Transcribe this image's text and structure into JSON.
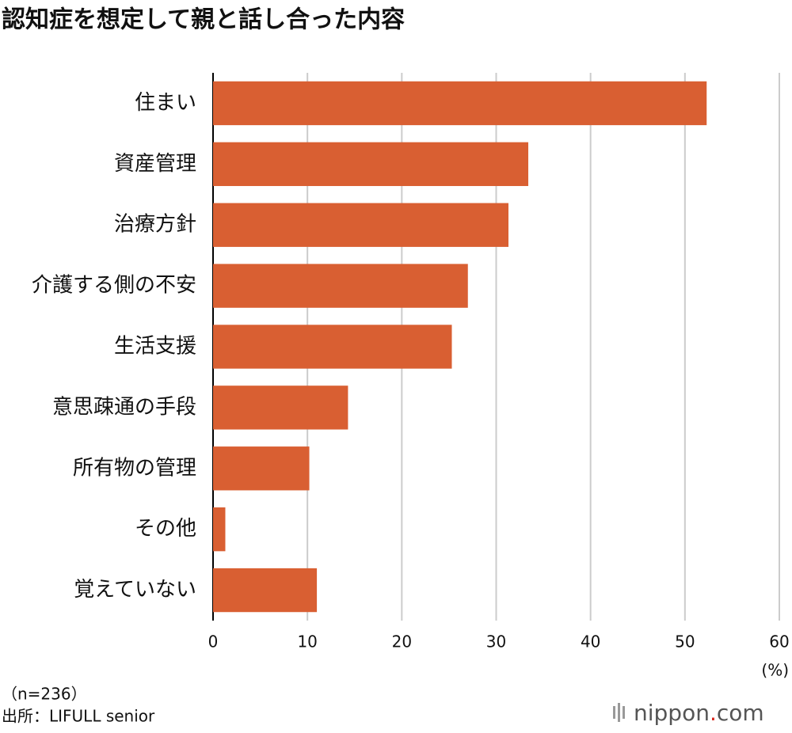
{
  "chart_data": {
    "type": "bar",
    "orientation": "horizontal",
    "title": "認知症を想定して親と話し合った内容",
    "categories": [
      "住まい",
      "資産管理",
      "治療方針",
      "介護する側の不安",
      "生活支援",
      "意思疎通の手段",
      "所有物の管理",
      "その他",
      "覚えていない"
    ],
    "values": [
      52.3,
      33.4,
      31.3,
      27.0,
      25.3,
      14.3,
      10.2,
      1.3,
      11.0
    ],
    "color": "#d95f32",
    "xlim": [
      0,
      60
    ],
    "xticks": [
      0,
      10,
      20,
      30,
      40,
      50,
      60
    ],
    "grid": true,
    "x_unit": "(%)",
    "note": "（n=236）",
    "source": "出所：LIFULL senior",
    "logo_parts": [
      "nippon",
      ".",
      "com"
    ]
  }
}
